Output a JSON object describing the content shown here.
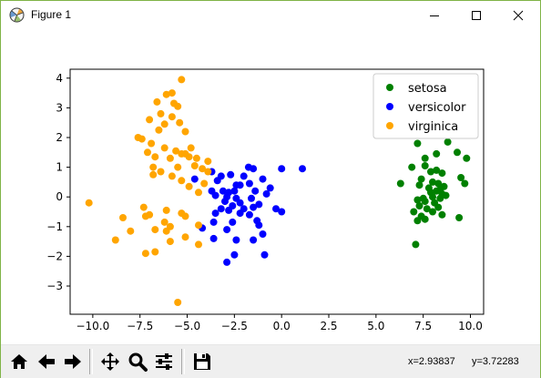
{
  "window": {
    "title": "Figure 1"
  },
  "icons": {
    "app": "matplotlib-figure-icon",
    "minimize": "minimize-icon",
    "maximize": "maximize-icon",
    "close": "close-icon"
  },
  "toolbar": {
    "buttons": [
      {
        "name": "home-icon"
      },
      {
        "name": "back-arrow-icon"
      },
      {
        "name": "forward-arrow-icon"
      },
      {
        "name": "pan-icon"
      },
      {
        "name": "zoom-icon"
      },
      {
        "name": "subplots-configure-icon"
      },
      {
        "name": "save-icon"
      }
    ],
    "x_readout": "x=2.93837",
    "y_readout": "y=3.72283"
  },
  "chart_data": {
    "type": "scatter",
    "title": "",
    "xlabel": "",
    "ylabel": "",
    "xlim": [
      -11.2,
      10.7
    ],
    "ylim": [
      -3.95,
      4.3
    ],
    "x_ticks": [
      -10.0,
      -7.5,
      -5.0,
      -2.5,
      0.0,
      2.5,
      5.0,
      7.5,
      10.0
    ],
    "x_tick_labels": [
      "−10.0",
      "−7.5",
      "−5.0",
      "−2.5",
      "0.0",
      "2.5",
      "5.0",
      "7.5",
      "10.0"
    ],
    "y_ticks": [
      -3,
      -2,
      -1,
      0,
      1,
      2,
      3,
      4
    ],
    "y_tick_labels": [
      "−3",
      "−2",
      "−1",
      "0",
      "1",
      "2",
      "3",
      "4"
    ],
    "grid": false,
    "legend_position": "top-right",
    "series": [
      {
        "name": "setosa",
        "color": "#008000",
        "points": [
          [
            7.2,
            1.8
          ],
          [
            8.8,
            1.85
          ],
          [
            9.3,
            1.5
          ],
          [
            8.2,
            1.45
          ],
          [
            7.6,
            1.3
          ],
          [
            9.8,
            1.3
          ],
          [
            7.6,
            1.05
          ],
          [
            6.9,
            1.0
          ],
          [
            8.2,
            0.9
          ],
          [
            8.5,
            0.8
          ],
          [
            7.9,
            0.85
          ],
          [
            9.5,
            0.65
          ],
          [
            7.4,
            0.6
          ],
          [
            8.0,
            0.5
          ],
          [
            6.3,
            0.45
          ],
          [
            7.3,
            0.4
          ],
          [
            9.7,
            0.45
          ],
          [
            8.3,
            0.45
          ],
          [
            7.8,
            0.3
          ],
          [
            8.4,
            0.25
          ],
          [
            8.6,
            0.35
          ],
          [
            7.9,
            0.15
          ],
          [
            8.2,
            0.2
          ],
          [
            8.5,
            0.1
          ],
          [
            7.5,
            -0.05
          ],
          [
            8.0,
            0.0
          ],
          [
            8.4,
            -0.05
          ],
          [
            7.2,
            -0.1
          ],
          [
            8.7,
            0.05
          ],
          [
            7.6,
            -0.15
          ],
          [
            8.1,
            -0.2
          ],
          [
            7.3,
            -0.3
          ],
          [
            8.3,
            -0.35
          ],
          [
            7.7,
            -0.4
          ],
          [
            7.0,
            -0.5
          ],
          [
            8.0,
            -0.5
          ],
          [
            8.5,
            -0.6
          ],
          [
            7.4,
            -0.65
          ],
          [
            9.4,
            -0.7
          ],
          [
            7.6,
            -0.75
          ],
          [
            7.2,
            -0.8
          ],
          [
            7.1,
            -1.6
          ]
        ]
      },
      {
        "name": "versicolor",
        "color": "#0000ff",
        "points": [
          [
            1.1,
            0.95
          ],
          [
            0.0,
            0.95
          ],
          [
            -1.5,
            0.95
          ],
          [
            -1.75,
            1.0
          ],
          [
            -3.7,
            0.85
          ],
          [
            -2.0,
            0.7
          ],
          [
            -3.2,
            0.7
          ],
          [
            -2.7,
            0.75
          ],
          [
            -4.6,
            0.6
          ],
          [
            -1.0,
            0.6
          ],
          [
            -3.4,
            0.55
          ],
          [
            -1.7,
            0.45
          ],
          [
            -2.4,
            0.4
          ],
          [
            -2.2,
            0.4
          ],
          [
            -3.7,
            0.2
          ],
          [
            -3.1,
            0.2
          ],
          [
            -2.5,
            0.2
          ],
          [
            -2.8,
            0.15
          ],
          [
            -1.4,
            0.2
          ],
          [
            -0.6,
            0.3
          ],
          [
            -0.8,
            0.1
          ],
          [
            -3.5,
            0.05
          ],
          [
            -2.9,
            0.0
          ],
          [
            -2.4,
            -0.05
          ],
          [
            -1.6,
            -0.05
          ],
          [
            -3.0,
            -0.15
          ],
          [
            -2.2,
            -0.2
          ],
          [
            -2.6,
            -0.3
          ],
          [
            -1.2,
            -0.25
          ],
          [
            -1.5,
            -0.35
          ],
          [
            -3.2,
            -0.4
          ],
          [
            -2.8,
            -0.45
          ],
          [
            -2.0,
            -0.4
          ],
          [
            -3.5,
            -0.55
          ],
          [
            -0.3,
            -0.4
          ],
          [
            0.0,
            -0.5
          ],
          [
            -2.2,
            -0.55
          ],
          [
            -3.6,
            -0.85
          ],
          [
            -1.7,
            -0.6
          ],
          [
            -1.3,
            -0.8
          ],
          [
            -2.6,
            -0.85
          ],
          [
            -1.2,
            -0.95
          ],
          [
            -4.2,
            -1.05
          ],
          [
            -2.9,
            -1.1
          ],
          [
            -1.0,
            -1.25
          ],
          [
            -3.6,
            -1.4
          ],
          [
            -2.4,
            -1.45
          ],
          [
            -1.5,
            -1.45
          ],
          [
            -2.5,
            -1.95
          ],
          [
            -0.9,
            -1.95
          ],
          [
            -2.9,
            -2.2
          ]
        ]
      },
      {
        "name": "virginica",
        "color": "#ffa500",
        "points": [
          [
            -5.3,
            3.95
          ],
          [
            -6.1,
            3.45
          ],
          [
            -5.8,
            3.5
          ],
          [
            -6.6,
            3.2
          ],
          [
            -5.7,
            3.15
          ],
          [
            -5.5,
            3.05
          ],
          [
            -6.4,
            2.8
          ],
          [
            -5.8,
            2.7
          ],
          [
            -7.0,
            2.6
          ],
          [
            -6.2,
            2.45
          ],
          [
            -5.4,
            2.5
          ],
          [
            -6.5,
            2.25
          ],
          [
            -5.1,
            2.2
          ],
          [
            -7.6,
            2.0
          ],
          [
            -7.4,
            1.95
          ],
          [
            -6.9,
            1.8
          ],
          [
            -6.2,
            1.65
          ],
          [
            -4.8,
            1.65
          ],
          [
            -7.1,
            1.5
          ],
          [
            -5.6,
            1.55
          ],
          [
            -6.7,
            1.35
          ],
          [
            -5.3,
            1.45
          ],
          [
            -5.1,
            1.45
          ],
          [
            -4.9,
            1.35
          ],
          [
            -5.9,
            1.3
          ],
          [
            -4.5,
            1.3
          ],
          [
            -3.9,
            1.2
          ],
          [
            -4.6,
            1.05
          ],
          [
            -6.8,
            1.0
          ],
          [
            -5.5,
            1.0
          ],
          [
            -4.2,
            0.95
          ],
          [
            -3.9,
            0.85
          ],
          [
            -6.4,
            0.85
          ],
          [
            -6.8,
            0.75
          ],
          [
            -5.8,
            0.7
          ],
          [
            -4.1,
            0.45
          ],
          [
            -4.9,
            0.35
          ],
          [
            -5.3,
            0.55
          ],
          [
            -4.4,
            0.15
          ],
          [
            -10.2,
            -0.2
          ],
          [
            -7.3,
            -0.35
          ],
          [
            -6.1,
            -0.45
          ],
          [
            -7.0,
            -0.6
          ],
          [
            -5.3,
            -0.55
          ],
          [
            -5.1,
            -0.65
          ],
          [
            -8.4,
            -0.7
          ],
          [
            -7.2,
            -0.65
          ],
          [
            -6.2,
            -0.85
          ],
          [
            -5.9,
            -1.0
          ],
          [
            -4.4,
            -0.95
          ],
          [
            -6.7,
            -1.1
          ],
          [
            -8.0,
            -1.15
          ],
          [
            -6.1,
            -1.15
          ],
          [
            -5.1,
            -1.35
          ],
          [
            -5.9,
            -1.5
          ],
          [
            -8.8,
            -1.45
          ],
          [
            -4.4,
            -1.6
          ],
          [
            -7.2,
            -1.9
          ],
          [
            -6.7,
            -1.85
          ],
          [
            -5.5,
            -3.55
          ]
        ]
      }
    ]
  }
}
